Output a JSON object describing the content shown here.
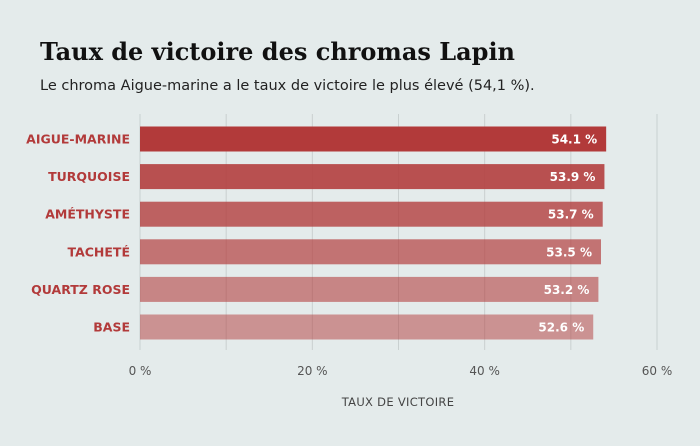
{
  "chart_data": {
    "type": "bar",
    "orientation": "horizontal",
    "title": "Taux de victoire des chromas Lapin",
    "subtitle": "Le chroma Aigue-marine a le taux de victoire le plus élevé (54,1 %).",
    "categories": [
      "AIGUE-MARINE",
      "TURQUOISE",
      "AMÉTHYSTE",
      "TACHETÉ",
      "QUARTZ ROSE",
      "BASE"
    ],
    "values": [
      54.1,
      53.9,
      53.7,
      53.5,
      53.2,
      52.6
    ],
    "value_labels": [
      "54.1 %",
      "53.9 %",
      "53.7 %",
      "53.5 %",
      "53.2 %",
      "52.6 %"
    ],
    "bar_opacities": [
      1.0,
      0.88,
      0.78,
      0.68,
      0.58,
      0.5
    ],
    "xlabel": "TAUX DE VICTOIRE",
    "ylabel": "",
    "xlim": [
      0,
      60
    ],
    "xticks": [
      0,
      20,
      40,
      60
    ],
    "xtick_labels": [
      "0 %",
      "20 %",
      "40 %",
      "60 %"
    ],
    "minor_gridlines": [
      10,
      30,
      50
    ],
    "grid": true,
    "bar_color": "#b23a3a",
    "label_color": "#b23a3a",
    "background": "#e4ebeb"
  }
}
